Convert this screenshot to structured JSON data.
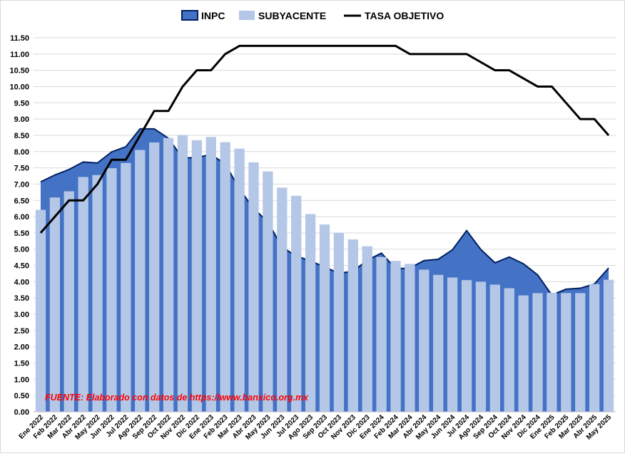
{
  "chart_data": {
    "type": "bar",
    "legend_position": "top",
    "grid": true,
    "ylim": [
      0,
      11.5
    ],
    "ytick_step": 0.5,
    "source_note": "FUENTE: Elaborado con datos de https://www.banxico.org.mx",
    "colors": {
      "inpc_fill": "#4472c4",
      "inpc_stroke": "#002060",
      "subyacente": "#b4c7e7",
      "tasa": "#000000",
      "grid": "#d9d9d9",
      "source": "#ff0000"
    },
    "categories": [
      "Ene 2022",
      "Feb 2022",
      "Mar 2022",
      "Abr 2022",
      "May 2022",
      "Jun 2022",
      "Jul 2022",
      "Ago 2022",
      "Sep 2022",
      "Oct 2022",
      "Nov 2022",
      "Dic 2022",
      "Ene 2023",
      "Feb 2023",
      "Mar 2023",
      "Abr 2023",
      "May 2023",
      "Jun 2023",
      "Jul 2023",
      "Ago 2023",
      "Sep 2023",
      "Oct 2023",
      "Nov 2023",
      "Dic 2023",
      "Ene 2024",
      "Feb 2024",
      "Mar 2024",
      "Abr 2024",
      "May 2024",
      "Jun 2024",
      "Jul 2024",
      "Ago 2024",
      "Sep 2024",
      "Oct 2024",
      "Nov 2024",
      "Dic 2024",
      "Ene 2025",
      "Feb 2025",
      "Mar 2025",
      "Abr 2025",
      "May 2025"
    ],
    "series": [
      {
        "name": "INPC",
        "type": "area",
        "values": [
          7.07,
          7.28,
          7.45,
          7.68,
          7.65,
          7.99,
          8.15,
          8.7,
          8.7,
          8.41,
          7.8,
          7.82,
          7.91,
          7.62,
          6.85,
          6.25,
          5.84,
          5.06,
          4.79,
          4.64,
          4.45,
          4.26,
          4.32,
          4.66,
          4.88,
          4.4,
          4.42,
          4.65,
          4.69,
          4.98,
          5.57,
          4.99,
          4.58,
          4.76,
          4.55,
          4.21,
          3.59,
          3.77,
          3.8,
          3.93,
          4.42
        ]
      },
      {
        "name": "SUBYACENTE",
        "type": "bar",
        "values": [
          6.21,
          6.59,
          6.78,
          7.22,
          7.28,
          7.49,
          7.65,
          8.05,
          8.28,
          8.42,
          8.51,
          8.35,
          8.45,
          8.29,
          8.09,
          7.67,
          7.39,
          6.89,
          6.64,
          6.08,
          5.76,
          5.5,
          5.3,
          5.09,
          4.76,
          4.64,
          4.55,
          4.37,
          4.21,
          4.13,
          4.05,
          4.0,
          3.91,
          3.8,
          3.58,
          3.65,
          3.66,
          3.65,
          3.65,
          3.93,
          4.06
        ]
      },
      {
        "name": "TASA OBJETIVO",
        "type": "line",
        "values": [
          5.5,
          6.0,
          6.5,
          6.5,
          7.0,
          7.75,
          7.75,
          8.5,
          9.25,
          9.25,
          10.0,
          10.5,
          10.5,
          11.0,
          11.25,
          11.25,
          11.25,
          11.25,
          11.25,
          11.25,
          11.25,
          11.25,
          11.25,
          11.25,
          11.25,
          11.25,
          11.0,
          11.0,
          11.0,
          11.0,
          11.0,
          10.75,
          10.5,
          10.5,
          10.25,
          10.0,
          10.0,
          9.5,
          9.0,
          9.0,
          8.5
        ]
      }
    ]
  }
}
